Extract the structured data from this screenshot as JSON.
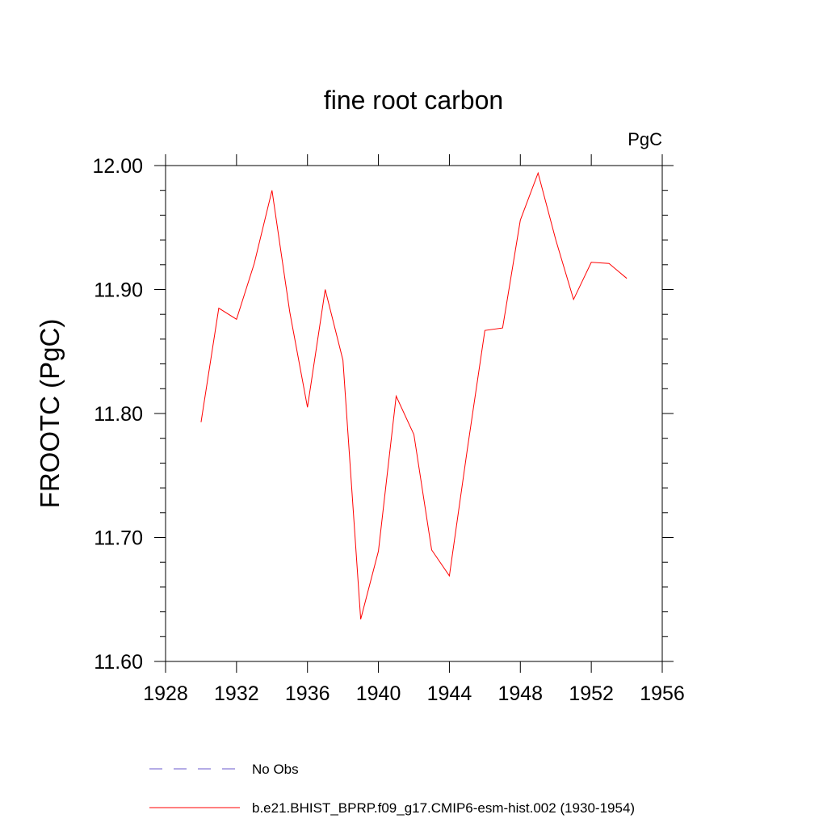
{
  "chart_data": {
    "type": "line",
    "title": "fine root carbon",
    "units_label": "PgC",
    "ylabel": "FROOTC  (PgC)",
    "xlabel": "",
    "xlim": [
      1928,
      1956
    ],
    "ylim": [
      11.6,
      12.0
    ],
    "x_ticks": [
      1928,
      1932,
      1936,
      1940,
      1944,
      1948,
      1952,
      1956
    ],
    "x_tick_labels": [
      "1928",
      "1932",
      "1936",
      "1940",
      "1944",
      "1948",
      "1952",
      "1956"
    ],
    "y_ticks": [
      11.6,
      11.7,
      11.8,
      11.9,
      12.0
    ],
    "y_tick_labels": [
      "11.60",
      "11.70",
      "11.80",
      "11.90",
      "12.00"
    ],
    "grid": false,
    "legend_placement": "bottom",
    "series": [
      {
        "name": "b.e21.BHIST_BPRP.f09_g17.CMIP6-esm-hist.002 (1930-1954)",
        "color": "#ff0000",
        "style": "solid",
        "x": [
          1930,
          1931,
          1932,
          1933,
          1934,
          1935,
          1936,
          1937,
          1938,
          1939,
          1940,
          1941,
          1942,
          1943,
          1944,
          1945,
          1946,
          1947,
          1948,
          1949,
          1950,
          1951,
          1952,
          1953,
          1954
        ],
        "values": [
          11.793,
          11.885,
          11.876,
          11.921,
          11.98,
          11.882,
          11.805,
          11.9,
          11.843,
          11.634,
          11.689,
          11.814,
          11.783,
          11.69,
          11.669,
          11.77,
          11.867,
          11.869,
          11.956,
          11.994,
          11.94,
          11.892,
          11.922,
          11.921,
          11.909
        ]
      }
    ],
    "legend": [
      {
        "label": "No Obs",
        "color": "#6a5acd",
        "style": "dashed"
      },
      {
        "label": "b.e21.BHIST_BPRP.f09_g17.CMIP6-esm-hist.002 (1930-1954)",
        "color": "#ff0000",
        "style": "solid"
      }
    ]
  }
}
